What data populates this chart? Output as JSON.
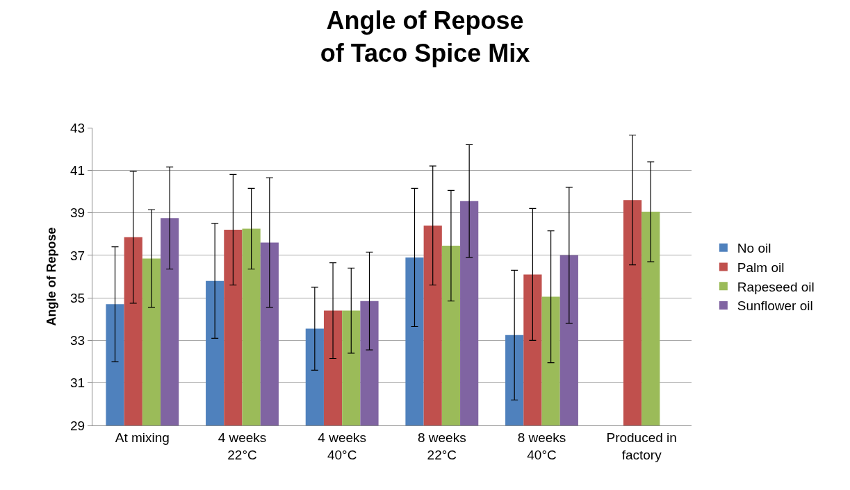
{
  "chart_data": {
    "type": "bar",
    "title": "Angle of Repose\nof Taco Spice Mix",
    "ylabel": "Angle of Repose",
    "categories": [
      "At mixing",
      "4 weeks\n22°C",
      "4 weeks\n40°C",
      "8 weeks\n22°C",
      "8 weeks\n40°C",
      "Produced in\nfactory"
    ],
    "series": [
      {
        "name": "No oil",
        "color": "#4f81bd",
        "values": [
          34.7,
          35.8,
          33.55,
          36.9,
          33.25,
          null
        ],
        "errors": [
          2.7,
          2.7,
          1.95,
          3.25,
          3.05,
          null
        ]
      },
      {
        "name": "Palm oil",
        "color": "#c0504d",
        "values": [
          37.85,
          38.2,
          34.4,
          38.4,
          36.1,
          39.6
        ],
        "errors": [
          3.1,
          2.6,
          2.25,
          2.8,
          3.1,
          3.05
        ]
      },
      {
        "name": "Rapeseed oil",
        "color": "#9bbb59",
        "values": [
          36.85,
          38.25,
          34.4,
          37.45,
          35.05,
          39.05
        ],
        "errors": [
          2.3,
          1.9,
          2.0,
          2.6,
          3.1,
          2.35
        ]
      },
      {
        "name": "Sunflower oil",
        "color": "#8064a2",
        "values": [
          38.75,
          37.6,
          34.85,
          39.55,
          37.0,
          null
        ],
        "errors": [
          2.4,
          3.05,
          2.3,
          2.65,
          3.2,
          null
        ]
      }
    ],
    "ylim": [
      29,
      43
    ],
    "yticks": [
      29,
      31,
      33,
      35,
      37,
      39,
      41,
      43
    ],
    "grid": "y",
    "legend": "right"
  }
}
